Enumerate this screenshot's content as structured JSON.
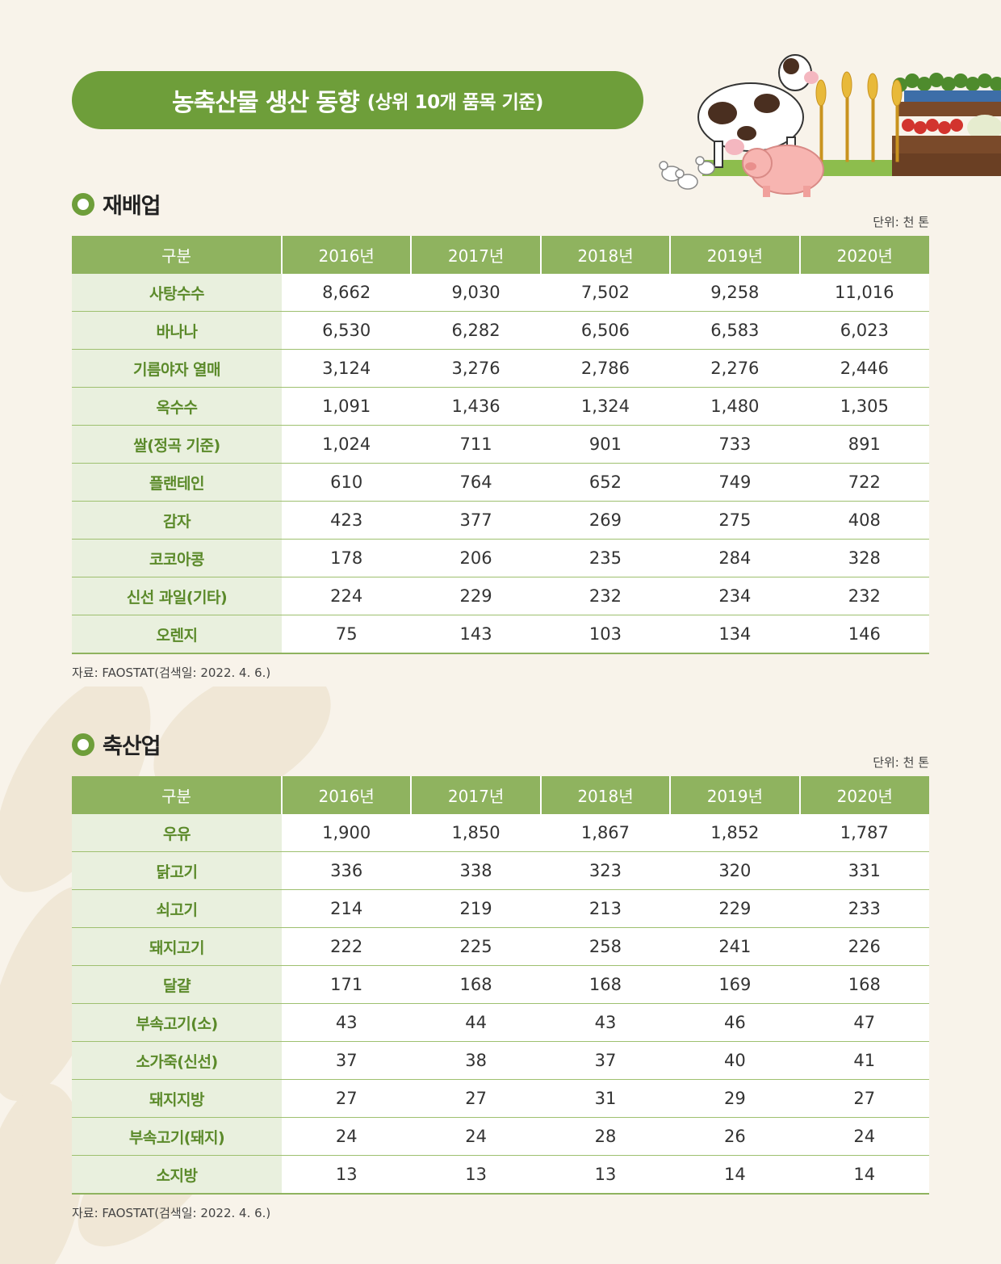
{
  "title": {
    "main": "농축산물 생산 동향",
    "sub": "(상위 10개 품목 기준)"
  },
  "crops": {
    "heading": "재배업",
    "unit": "단위: 천 톤",
    "headers": [
      "구분",
      "2016년",
      "2017년",
      "2018년",
      "2019년",
      "2020년"
    ],
    "rows": [
      {
        "name": "사탕수수",
        "values": [
          "8,662",
          "9,030",
          "7,502",
          "9,258",
          "11,016"
        ]
      },
      {
        "name": "바나나",
        "values": [
          "6,530",
          "6,282",
          "6,506",
          "6,583",
          "6,023"
        ]
      },
      {
        "name": "기름야자 열매",
        "values": [
          "3,124",
          "3,276",
          "2,786",
          "2,276",
          "2,446"
        ]
      },
      {
        "name": "옥수수",
        "values": [
          "1,091",
          "1,436",
          "1,324",
          "1,480",
          "1,305"
        ]
      },
      {
        "name": "쌀(정곡 기준)",
        "values": [
          "1,024",
          "711",
          "901",
          "733",
          "891"
        ]
      },
      {
        "name": "플랜테인",
        "values": [
          "610",
          "764",
          "652",
          "749",
          "722"
        ]
      },
      {
        "name": "감자",
        "values": [
          "423",
          "377",
          "269",
          "275",
          "408"
        ]
      },
      {
        "name": "코코아콩",
        "values": [
          "178",
          "206",
          "235",
          "284",
          "328"
        ]
      },
      {
        "name": "신선 과일(기타)",
        "values": [
          "224",
          "229",
          "232",
          "234",
          "232"
        ]
      },
      {
        "name": "오렌지",
        "values": [
          "75",
          "143",
          "103",
          "134",
          "146"
        ]
      }
    ],
    "source": "자료: FAOSTAT(검색일: 2022. 4. 6.)"
  },
  "livestock": {
    "heading": "축산업",
    "unit": "단위: 천 톤",
    "headers": [
      "구분",
      "2016년",
      "2017년",
      "2018년",
      "2019년",
      "2020년"
    ],
    "rows": [
      {
        "name": "우유",
        "values": [
          "1,900",
          "1,850",
          "1,867",
          "1,852",
          "1,787"
        ]
      },
      {
        "name": "닭고기",
        "values": [
          "336",
          "338",
          "323",
          "320",
          "331"
        ]
      },
      {
        "name": "쇠고기",
        "values": [
          "214",
          "219",
          "213",
          "229",
          "233"
        ]
      },
      {
        "name": "돼지고기",
        "values": [
          "222",
          "225",
          "258",
          "241",
          "226"
        ]
      },
      {
        "name": "달걀",
        "values": [
          "171",
          "168",
          "168",
          "169",
          "168"
        ]
      },
      {
        "name": "부속고기(소)",
        "values": [
          "43",
          "44",
          "43",
          "46",
          "47"
        ]
      },
      {
        "name": "소가죽(신선)",
        "values": [
          "37",
          "38",
          "37",
          "40",
          "41"
        ]
      },
      {
        "name": "돼지지방",
        "values": [
          "27",
          "27",
          "31",
          "29",
          "27"
        ]
      },
      {
        "name": "부속고기(돼지)",
        "values": [
          "24",
          "24",
          "28",
          "26",
          "24"
        ]
      },
      {
        "name": "소지방",
        "values": [
          "13",
          "13",
          "13",
          "14",
          "14"
        ]
      }
    ],
    "source": "자료: FAOSTAT(검색일: 2022. 4. 6.)"
  },
  "colors": {
    "accent": "#6e9e3a",
    "header": "#8fb35f",
    "name_bg": "#e9f0de",
    "background": "#f8f3ea"
  },
  "icons": [
    "cow-icon",
    "pig-icon",
    "chicken-icon",
    "wheat-icon",
    "vegetable-crate-icon",
    "leaf-pattern"
  ]
}
